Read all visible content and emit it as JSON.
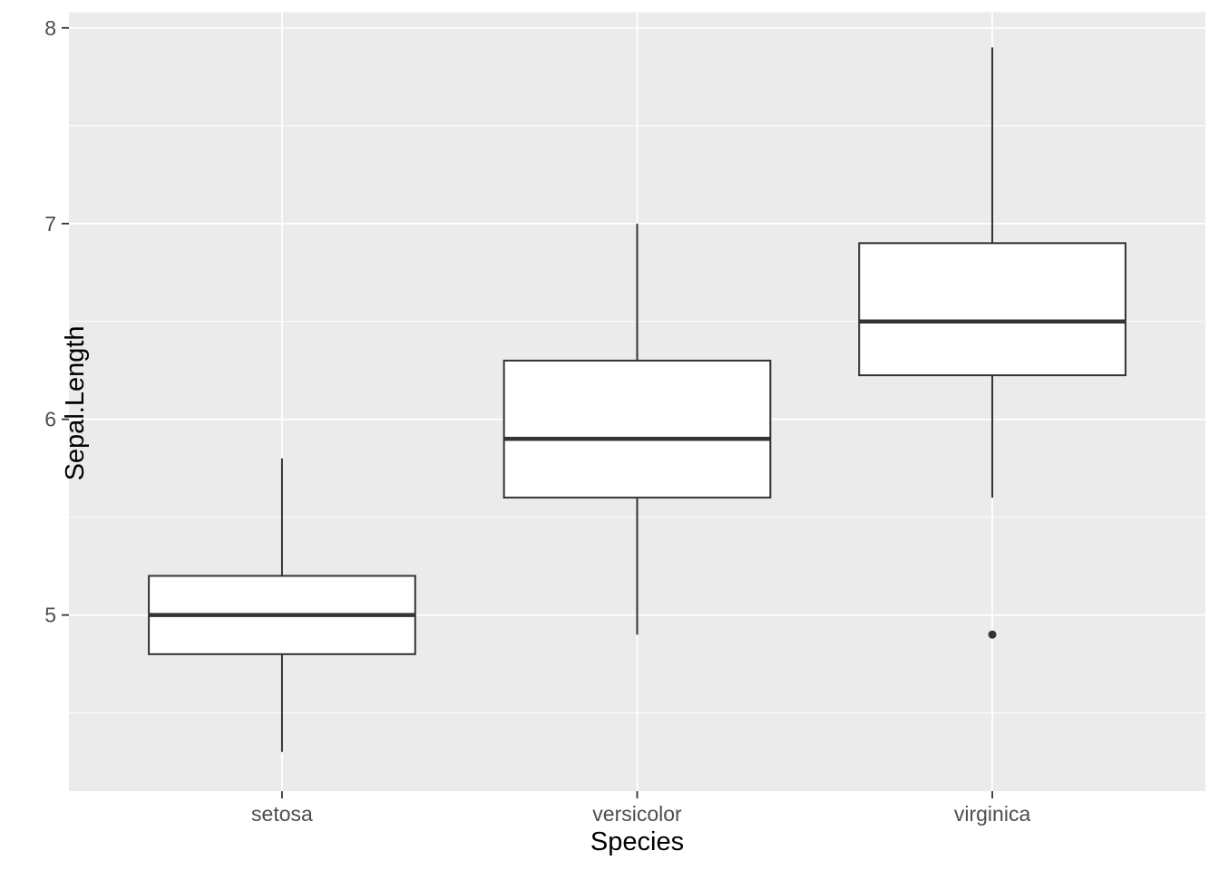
{
  "figure": {
    "xlabel": "Species",
    "ylabel": "Sepal.Length"
  },
  "style": {
    "panel_bg": "#EBEBEB",
    "grid_color": "#FFFFFF",
    "box_fill": "#FFFFFF",
    "box_stroke": "#333333",
    "outlier_color": "#333333",
    "axis_text_color": "#4D4D4D",
    "axis_title_color": "#000000",
    "tick_mark_color": "#333333"
  },
  "chart_data": {
    "type": "boxplot",
    "title": "",
    "xlabel": "Species",
    "ylabel": "Sepal.Length",
    "categories": [
      "setosa",
      "versicolor",
      "virginica"
    ],
    "series": [
      {
        "name": "setosa",
        "whisker_low": 4.3,
        "q1": 4.8,
        "median": 5.0,
        "q3": 5.2,
        "whisker_high": 5.8,
        "outliers": []
      },
      {
        "name": "versicolor",
        "whisker_low": 4.9,
        "q1": 5.6,
        "median": 5.9,
        "q3": 6.3,
        "whisker_high": 7.0,
        "outliers": []
      },
      {
        "name": "virginica",
        "whisker_low": 5.6,
        "q1": 6.225,
        "median": 6.5,
        "q3": 6.9,
        "whisker_high": 7.9,
        "outliers": [
          4.9
        ]
      }
    ],
    "y_major_ticks": [
      5,
      6,
      7,
      8
    ],
    "y_minor_ticks": [
      4.5,
      5.5,
      6.5,
      7.5
    ],
    "y_tick_labels": [
      "5",
      "6",
      "7",
      "8"
    ],
    "ylim": [
      4.1,
      8.08
    ],
    "grid": "horizontal major+minor, vertical major at categories",
    "legend_position": "none",
    "box_width_fraction": 0.75
  }
}
